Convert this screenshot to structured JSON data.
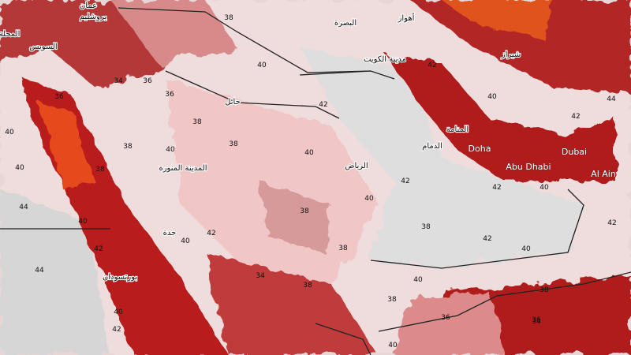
{
  "map": {
    "cities": [
      {
        "label": "عمان"
      },
      {
        "label": "يروشليم"
      },
      {
        "label": "السويس"
      },
      {
        "label": "المحلة"
      },
      {
        "label": "حائل"
      },
      {
        "label": "المدينة المنورة"
      },
      {
        "label": "الرياض"
      },
      {
        "label": "مدينة الكويت"
      },
      {
        "label": "البصرة"
      },
      {
        "label": "أهواز"
      },
      {
        "label": "المنامة"
      },
      {
        "label": "الدمام"
      },
      {
        "label": "Doha"
      },
      {
        "label": "Abu Dhabi"
      },
      {
        "label": "Dubai"
      },
      {
        "label": "Al Ain"
      },
      {
        "label": "جدة"
      },
      {
        "label": "بورتسودان"
      },
      {
        "label": "شيراز"
      }
    ],
    "contour_labels": [
      38,
      36,
      34,
      36,
      38,
      38,
      40,
      40,
      42,
      38,
      40,
      40,
      38,
      38,
      40,
      42,
      40,
      38,
      36,
      38,
      40,
      44,
      42,
      40,
      42,
      40,
      42,
      44,
      42,
      42,
      40,
      38,
      36,
      40,
      34,
      38,
      40,
      42,
      44,
      42,
      40,
      38,
      34,
      36,
      40,
      42
    ]
  }
}
